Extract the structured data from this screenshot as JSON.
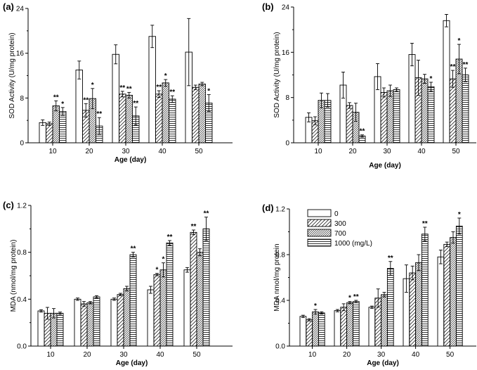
{
  "chart_data": [
    {
      "panel": "(a)",
      "type": "bar",
      "categories": [
        "10",
        "20",
        "30",
        "40",
        "50"
      ],
      "series": [
        {
          "values": [
            3.6,
            13.0,
            15.8,
            19.0,
            16.2
          ],
          "errors": [
            0.5,
            1.6,
            1.7,
            2.0,
            6.0
          ],
          "stars": [
            "",
            "",
            "",
            "",
            ""
          ]
        },
        {
          "values": [
            3.4,
            5.8,
            8.7,
            8.7,
            9.9
          ],
          "errors": [
            0.3,
            1.2,
            0.5,
            0.6,
            0.4
          ],
          "stars": [
            "",
            "**",
            "**",
            "**",
            ""
          ]
        },
        {
          "values": [
            6.6,
            7.9,
            8.5,
            10.7,
            10.5
          ],
          "errors": [
            0.9,
            1.8,
            0.5,
            0.6,
            0.3
          ],
          "stars": [
            "**",
            "*",
            "**",
            "*",
            ""
          ]
        },
        {
          "values": [
            5.6,
            3.0,
            4.8,
            7.8,
            7.1
          ],
          "errors": [
            0.7,
            1.5,
            1.6,
            0.6,
            1.5
          ],
          "stars": [
            "*",
            "**",
            "**",
            "**",
            "*"
          ]
        }
      ],
      "xlabel": "Age (day)",
      "ylabel": "SOD Activity (U/mg protein)",
      "ylim": [
        0,
        24
      ],
      "yticks": [
        "0",
        "8",
        "16",
        "24"
      ],
      "grid": false
    },
    {
      "panel": "(b)",
      "type": "bar",
      "categories": [
        "10",
        "20",
        "30",
        "40",
        "50"
      ],
      "series": [
        {
          "values": [
            4.5,
            10.2,
            11.7,
            15.6,
            21.6
          ],
          "errors": [
            0.8,
            2.3,
            2.3,
            2.0,
            1.1
          ],
          "stars": [
            "",
            "",
            "",
            "",
            ""
          ]
        },
        {
          "values": [
            3.9,
            6.6,
            8.9,
            11.5,
            11.3
          ],
          "errors": [
            0.7,
            0.5,
            0.8,
            3.1,
            1.5
          ],
          "stars": [
            "",
            "",
            "",
            "",
            "**"
          ]
        },
        {
          "values": [
            7.5,
            5.4,
            9.2,
            11.3,
            14.8
          ],
          "errors": [
            1.3,
            1.6,
            1.0,
            0.8,
            2.6
          ],
          "stars": [
            "",
            "",
            "",
            "",
            "*"
          ]
        },
        {
          "values": [
            7.5,
            1.2,
            9.4,
            9.9,
            12.0
          ],
          "errors": [
            1.2,
            0.2,
            0.3,
            0.8,
            1.2
          ],
          "stars": [
            "",
            "**",
            "",
            "*",
            "**"
          ]
        }
      ],
      "xlabel": "Age (day)",
      "ylabel": "SOD Activity (U/mg protein)",
      "ylim": [
        0,
        24
      ],
      "yticks": [
        "0",
        "8",
        "16",
        "24"
      ],
      "grid": false
    },
    {
      "panel": "(c)",
      "type": "bar",
      "categories": [
        "10",
        "20",
        "30",
        "40",
        "50"
      ],
      "series": [
        {
          "values": [
            0.3,
            0.4,
            0.4,
            0.48,
            0.65
          ],
          "errors": [
            0.01,
            0.01,
            0.01,
            0.03,
            0.02
          ],
          "stars": [
            "",
            "",
            "",
            "",
            ""
          ]
        },
        {
          "values": [
            0.28,
            0.36,
            0.44,
            0.61,
            0.97
          ],
          "errors": [
            0.05,
            0.02,
            0.01,
            0.01,
            0.02
          ],
          "stars": [
            "",
            "",
            "",
            "*",
            "**"
          ]
        },
        {
          "values": [
            0.28,
            0.37,
            0.49,
            0.65,
            0.8
          ],
          "errors": [
            0.04,
            0.01,
            0.02,
            0.06,
            0.03
          ],
          "stars": [
            "",
            "",
            "",
            "*",
            ""
          ]
        },
        {
          "values": [
            0.28,
            0.42,
            0.78,
            0.88,
            1.0
          ],
          "errors": [
            0.01,
            0.01,
            0.02,
            0.02,
            0.1
          ],
          "stars": [
            "",
            "",
            "**",
            "**",
            "**"
          ]
        }
      ],
      "xlabel": "Age (day)",
      "ylabel": "MDA (nmol/mg protein)",
      "ylim": [
        0,
        1.2
      ],
      "yticks": [
        "0.0",
        "0.4",
        "0.8",
        "1.2"
      ],
      "grid": false
    },
    {
      "panel": "(d)",
      "type": "bar",
      "categories": [
        "10",
        "20",
        "30",
        "40",
        "50"
      ],
      "series": [
        {
          "name": "0",
          "values": [
            0.26,
            0.31,
            0.34,
            0.59,
            0.78
          ],
          "errors": [
            0.01,
            0.01,
            0.01,
            0.12,
            0.06
          ],
          "stars": [
            "",
            "",
            "",
            "",
            ""
          ]
        },
        {
          "name": "300",
          "values": [
            0.23,
            0.34,
            0.42,
            0.64,
            0.89
          ],
          "errors": [
            0.01,
            0.03,
            0.08,
            0.06,
            0.02
          ],
          "stars": [
            "",
            "",
            "",
            "",
            ""
          ]
        },
        {
          "name": "700",
          "values": [
            0.3,
            0.38,
            0.45,
            0.73,
            0.95
          ],
          "errors": [
            0.02,
            0.01,
            0.02,
            0.07,
            0.05
          ],
          "stars": [
            "*",
            "*",
            "",
            "",
            ""
          ]
        },
        {
          "name": "1000 (mg/L)",
          "values": [
            0.29,
            0.39,
            0.68,
            0.98,
            1.05
          ],
          "errors": [
            0.01,
            0.01,
            0.06,
            0.06,
            0.07
          ],
          "stars": [
            "",
            "**",
            "**",
            "**",
            "*"
          ]
        }
      ],
      "xlabel": "Age (day)",
      "ylabel": "MDA nmol/mg  protein",
      "ylim": [
        0,
        1.2
      ],
      "yticks": [
        "0.0",
        "0.4",
        "0.8",
        "1.2"
      ],
      "grid": false,
      "legend": "top-left"
    }
  ]
}
